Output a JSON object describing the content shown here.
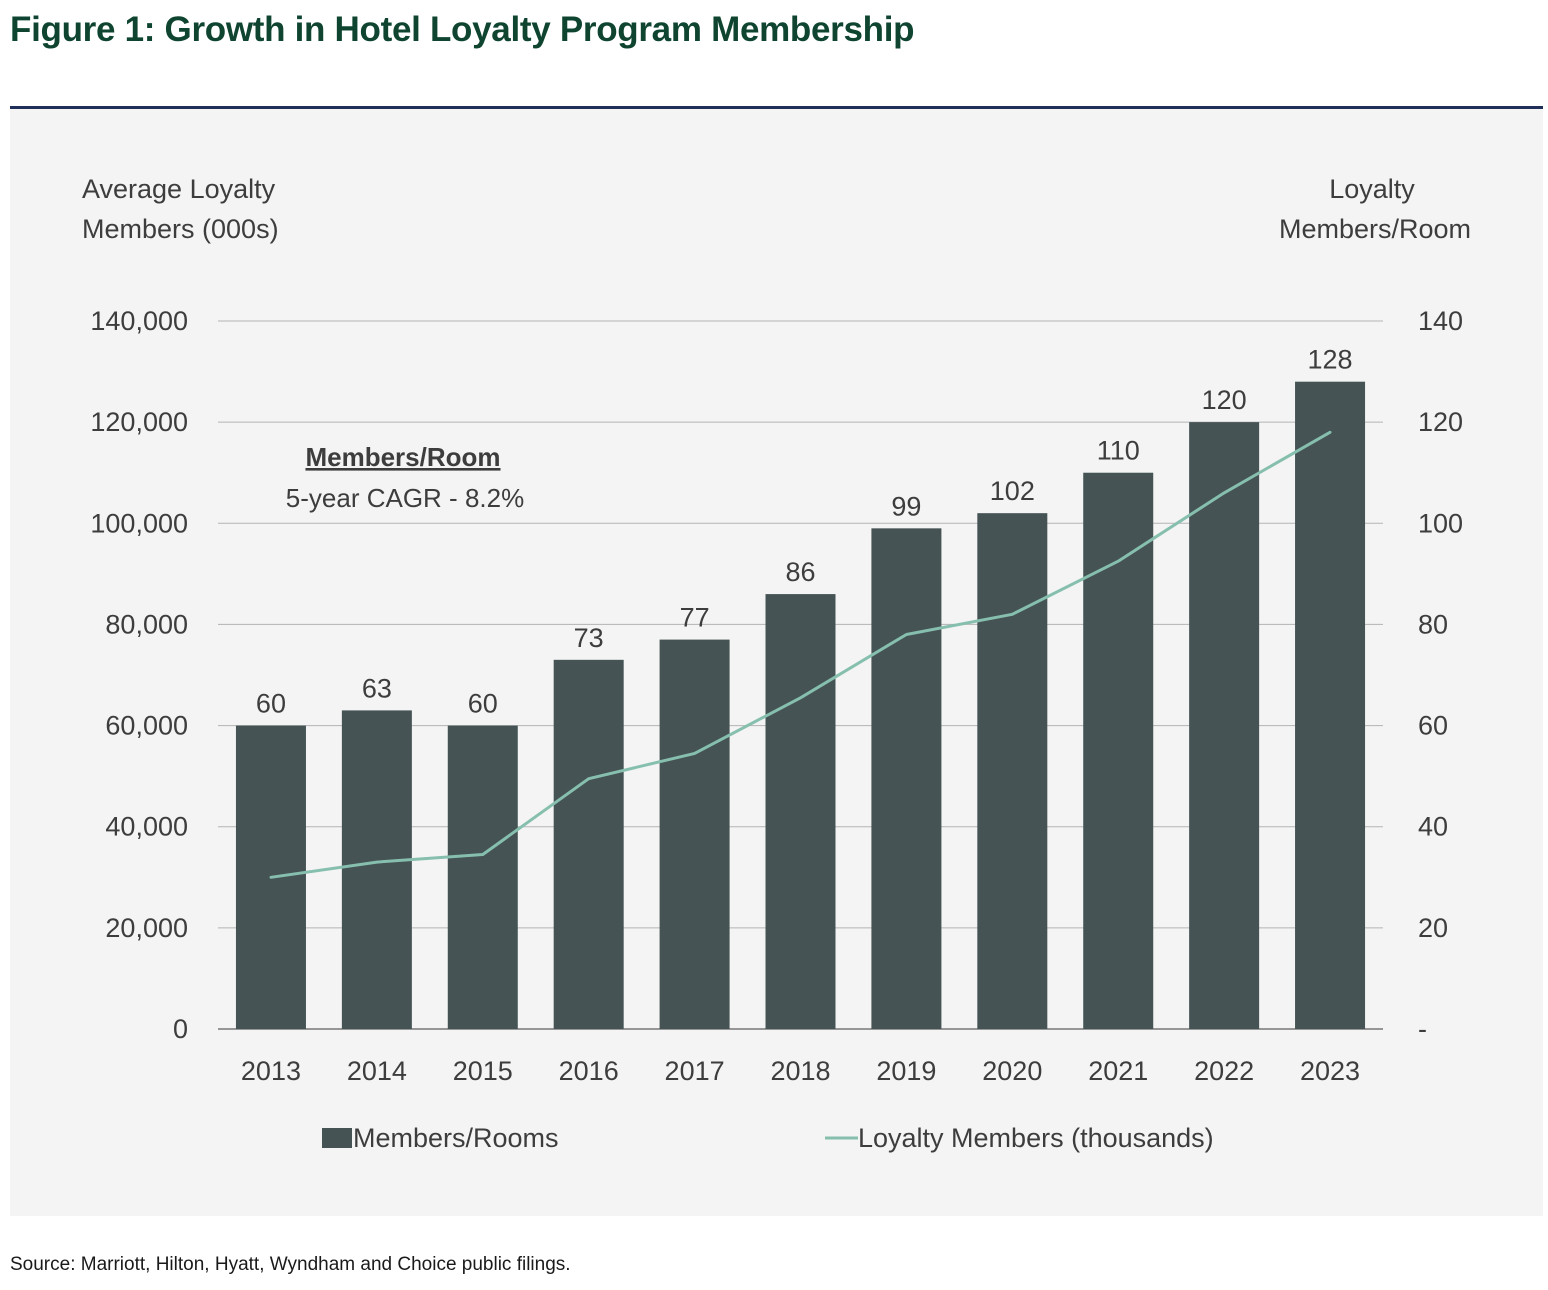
{
  "title": "Figure 1: Growth in Hotel Loyalty Program Membership",
  "source": "Source: Marriott, Hilton, Hyatt, Wyndham and Choice public filings.",
  "annotation": {
    "heading": "Members/Room",
    "text": "5-year CAGR - 8.2%"
  },
  "colors": {
    "bar": "#455354",
    "line": "#86bfae",
    "title": "#0f4530",
    "rule": "#1f2f5a",
    "panel": "#f3f4f3"
  },
  "chart_data": {
    "type": "bar",
    "categories": [
      "2013",
      "2014",
      "2015",
      "2016",
      "2017",
      "2018",
      "2019",
      "2020",
      "2021",
      "2022",
      "2023"
    ],
    "series": [
      {
        "name": "Members/Rooms",
        "type": "bar",
        "axis": "right",
        "values": [
          60,
          63,
          60,
          73,
          77,
          86,
          99,
          102,
          110,
          120,
          128
        ],
        "data_labels": [
          "60",
          "63",
          "60",
          "73",
          "77",
          "86",
          "99",
          "102",
          "110",
          "120",
          "128"
        ]
      },
      {
        "name": "Loyalty Members (thousands)",
        "type": "line",
        "axis": "left",
        "values": [
          30000,
          33000,
          34500,
          49500,
          54500,
          65500,
          78000,
          82000,
          92500,
          106000,
          118000
        ]
      }
    ],
    "y_left": {
      "label_lines": [
        "Average Loyalty",
        "Members (000s)"
      ],
      "ylim": [
        0,
        140000
      ],
      "ticks": [
        "0",
        "20,000",
        "40,000",
        "60,000",
        "80,000",
        "100,000",
        "120,000",
        "140,000"
      ]
    },
    "y_right": {
      "label_lines": [
        "Loyalty",
        "Members/Room"
      ],
      "ylim": [
        0,
        140
      ],
      "ticks": [
        "-",
        "20",
        "40",
        "60",
        "80",
        "100",
        "120",
        "140"
      ]
    },
    "grid": true,
    "legend_position": "bottom"
  }
}
